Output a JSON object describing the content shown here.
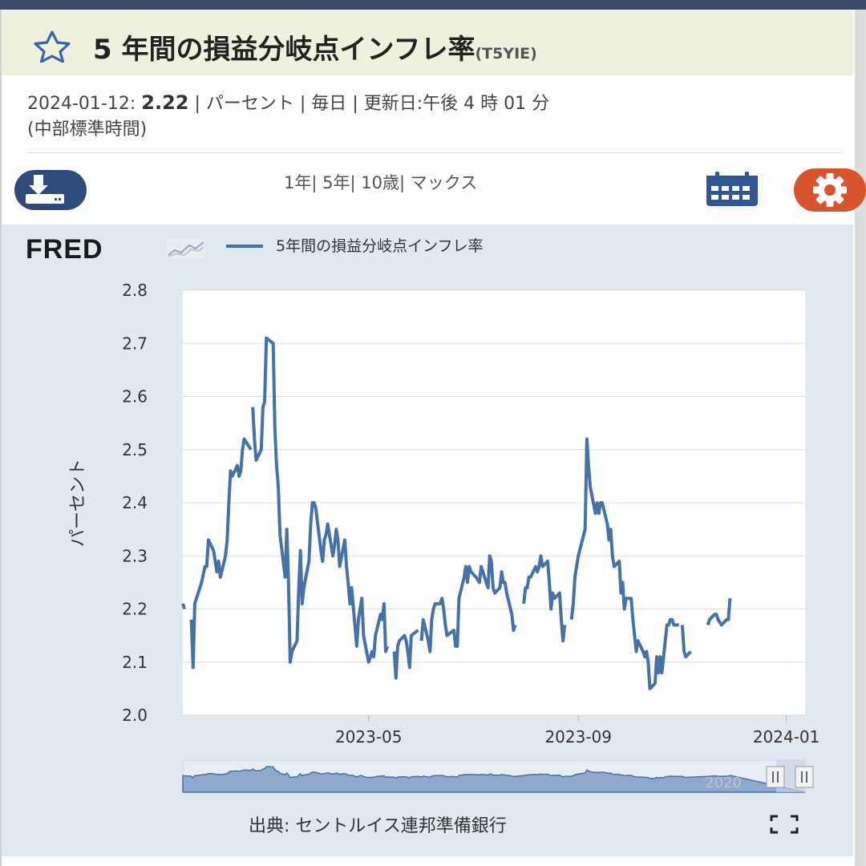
{
  "header": {
    "star_icon": "star-outline-icon",
    "title": "5 年間の損益分岐点インフレ率",
    "series_code": "(T5YIE)"
  },
  "meta": {
    "date": "2024-01-12:",
    "value": "2.22",
    "units": "| パーセント |",
    "frequency": "毎日",
    "updated": "| 更新日:午後 4 時 01 分",
    "timezone": "(中部標準時間)"
  },
  "toolbar": {
    "download_icon": "download-icon",
    "range_1y": "1年|",
    "range_5y": "5年|",
    "range_10y": "10歳|",
    "range_max": "マックス",
    "calendar_icon": "calendar-icon",
    "settings_icon": "gear-icon"
  },
  "branding": {
    "logo": "FRED"
  },
  "chart_data": {
    "type": "line",
    "ylabel": "パーセント",
    "ylim": [
      2.0,
      2.8
    ],
    "yticks": [
      "2.0",
      "2.1",
      "2.2",
      "2.3",
      "2.4",
      "2.5",
      "2.6",
      "2.7",
      "2.8"
    ],
    "xticks": [
      {
        "label": "2023-05",
        "x": "2023-05-01"
      },
      {
        "label": "2023-09",
        "x": "2023-09-01"
      },
      {
        "label": "2024-01",
        "x": "2024-01-01"
      }
    ],
    "xlim": [
      "2023-01-12",
      "2024-01-12"
    ],
    "grid": true,
    "legend": "top-left",
    "series": [
      {
        "name": "5年間の損益分岐点インフレ率",
        "color": "#4572a7",
        "points": [
          [
            "2023-01-12",
            2.21
          ],
          [
            "2023-01-13",
            2.2
          ],
          null,
          [
            "2023-01-17",
            2.18
          ],
          [
            "2023-01-18",
            2.09
          ],
          [
            "2023-01-19",
            2.21
          ],
          [
            "2023-01-23",
            2.25
          ],
          [
            "2023-01-25",
            2.28
          ],
          [
            "2023-01-26",
            2.28
          ],
          [
            "2023-01-27",
            2.33
          ],
          [
            "2023-01-30",
            2.31
          ],
          [
            "2023-01-31",
            2.29
          ],
          [
            "2023-02-01",
            2.27
          ],
          [
            "2023-02-02",
            2.29
          ],
          [
            "2023-02-03",
            2.26
          ],
          [
            "2023-02-06",
            2.3
          ],
          [
            "2023-02-07",
            2.33
          ],
          [
            "2023-02-08",
            2.4
          ],
          [
            "2023-02-09",
            2.46
          ],
          [
            "2023-02-10",
            2.45
          ],
          [
            "2023-02-13",
            2.47
          ],
          [
            "2023-02-14",
            2.45
          ],
          [
            "2023-02-15",
            2.46
          ],
          [
            "2023-02-16",
            2.5
          ],
          [
            "2023-02-17",
            2.52
          ],
          [
            "2023-02-21",
            2.5
          ],
          null,
          [
            "2023-02-22",
            2.58
          ],
          [
            "2023-02-23",
            2.52
          ],
          [
            "2023-02-24",
            2.48
          ],
          [
            "2023-02-27",
            2.5
          ],
          [
            "2023-02-28",
            2.58
          ],
          [
            "2023-03-01",
            2.59
          ],
          [
            "2023-03-02",
            2.71
          ],
          [
            "2023-03-06",
            2.7
          ],
          [
            "2023-03-07",
            2.54
          ],
          [
            "2023-03-08",
            2.47
          ],
          [
            "2023-03-09",
            2.43
          ],
          [
            "2023-03-10",
            2.34
          ],
          [
            "2023-03-13",
            2.26
          ],
          [
            "2023-03-14",
            2.35
          ],
          [
            "2023-03-15",
            2.25
          ],
          [
            "2023-03-16",
            2.1
          ],
          [
            "2023-03-17",
            2.12
          ],
          [
            "2023-03-20",
            2.14
          ],
          [
            "2023-03-21",
            2.24
          ],
          [
            "2023-03-22",
            2.31
          ],
          [
            "2023-03-23",
            2.21
          ],
          [
            "2023-03-24",
            2.24
          ],
          [
            "2023-03-27",
            2.29
          ],
          [
            "2023-03-28",
            2.36
          ],
          [
            "2023-03-29",
            2.4
          ],
          [
            "2023-03-30",
            2.4
          ],
          [
            "2023-03-31",
            2.39
          ],
          [
            "2023-04-03",
            2.31
          ],
          [
            "2023-04-04",
            2.29
          ],
          [
            "2023-04-05",
            2.33
          ],
          [
            "2023-04-06",
            2.34
          ],
          [
            "2023-04-07",
            2.36
          ],
          [
            "2023-04-10",
            2.3
          ],
          [
            "2023-04-11",
            2.32
          ],
          [
            "2023-04-12",
            2.35
          ],
          [
            "2023-04-13",
            2.33
          ],
          [
            "2023-04-14",
            2.28
          ],
          [
            "2023-04-17",
            2.33
          ],
          [
            "2023-04-18",
            2.28
          ],
          [
            "2023-04-19",
            2.25
          ],
          [
            "2023-04-20",
            2.21
          ],
          [
            "2023-04-21",
            2.24
          ],
          [
            "2023-04-24",
            2.13
          ],
          [
            "2023-04-25",
            2.18
          ],
          [
            "2023-04-26",
            2.2
          ],
          [
            "2023-04-27",
            2.22
          ],
          [
            "2023-04-28",
            2.15
          ],
          [
            "2023-05-01",
            2.1
          ],
          [
            "2023-05-02",
            2.11
          ],
          [
            "2023-05-03",
            2.12
          ],
          [
            "2023-05-04",
            2.11
          ],
          [
            "2023-05-05",
            2.15
          ],
          [
            "2023-05-08",
            2.19
          ],
          [
            "2023-05-09",
            2.18
          ],
          [
            "2023-05-10",
            2.21
          ],
          [
            "2023-05-11",
            2.12
          ],
          [
            "2023-05-12",
            2.13
          ],
          null,
          [
            "2023-05-16",
            2.12
          ],
          [
            "2023-05-17",
            2.07
          ],
          [
            "2023-05-18",
            2.13
          ],
          [
            "2023-05-19",
            2.14
          ],
          [
            "2023-05-22",
            2.15
          ],
          [
            "2023-05-23",
            2.14
          ],
          [
            "2023-05-24",
            2.12
          ],
          [
            "2023-05-25",
            2.09
          ],
          [
            "2023-05-26",
            2.15
          ],
          [
            "2023-05-30",
            2.16
          ],
          null,
          [
            "2023-06-01",
            2.14
          ],
          [
            "2023-06-02",
            2.18
          ],
          [
            "2023-06-05",
            2.14
          ],
          [
            "2023-06-06",
            2.12
          ],
          [
            "2023-06-07",
            2.18
          ],
          [
            "2023-06-08",
            2.2
          ],
          [
            "2023-06-09",
            2.21
          ],
          [
            "2023-06-12",
            2.21
          ],
          [
            "2023-06-13",
            2.22
          ],
          [
            "2023-06-14",
            2.2
          ],
          [
            "2023-06-15",
            2.17
          ],
          [
            "2023-06-16",
            2.15
          ],
          [
            "2023-06-20",
            2.16
          ],
          [
            "2023-06-21",
            2.13
          ],
          [
            "2023-06-22",
            2.13
          ],
          [
            "2023-06-23",
            2.22
          ],
          [
            "2023-06-26",
            2.26
          ],
          [
            "2023-06-27",
            2.28
          ],
          [
            "2023-06-28",
            2.25
          ],
          [
            "2023-06-29",
            2.28
          ],
          [
            "2023-06-30",
            2.27
          ],
          [
            "2023-07-03",
            2.26
          ],
          [
            "2023-07-05",
            2.25
          ],
          [
            "2023-07-06",
            2.28
          ],
          [
            "2023-07-07",
            2.27
          ],
          [
            "2023-07-10",
            2.24
          ],
          [
            "2023-07-11",
            2.3
          ],
          [
            "2023-07-12",
            2.29
          ],
          [
            "2023-07-13",
            2.24
          ],
          [
            "2023-07-14",
            2.23
          ],
          [
            "2023-07-17",
            2.24
          ],
          [
            "2023-07-18",
            2.27
          ],
          [
            "2023-07-19",
            2.25
          ],
          [
            "2023-07-20",
            2.25
          ],
          [
            "2023-07-21",
            2.23
          ],
          [
            "2023-07-24",
            2.19
          ],
          [
            "2023-07-25",
            2.16
          ],
          [
            "2023-07-26",
            2.17
          ],
          null,
          [
            "2023-07-31",
            2.21
          ],
          [
            "2023-08-01",
            2.24
          ],
          [
            "2023-08-02",
            2.24
          ],
          [
            "2023-08-03",
            2.26
          ],
          [
            "2023-08-04",
            2.26
          ],
          [
            "2023-08-07",
            2.28
          ],
          [
            "2023-08-08",
            2.27
          ],
          [
            "2023-08-09",
            2.28
          ],
          [
            "2023-08-10",
            2.3
          ],
          [
            "2023-08-11",
            2.28
          ],
          [
            "2023-08-14",
            2.29
          ],
          [
            "2023-08-15",
            2.25
          ],
          [
            "2023-08-16",
            2.2
          ],
          [
            "2023-08-17",
            2.23
          ],
          [
            "2023-08-18",
            2.22
          ],
          [
            "2023-08-21",
            2.23
          ],
          [
            "2023-08-22",
            2.18
          ],
          [
            "2023-08-23",
            2.14
          ],
          [
            "2023-08-24",
            2.17
          ],
          null,
          [
            "2023-08-28",
            2.18
          ],
          [
            "2023-08-29",
            2.21
          ],
          [
            "2023-08-30",
            2.26
          ],
          [
            "2023-08-31",
            2.28
          ],
          [
            "2023-09-01",
            2.3
          ],
          [
            "2023-09-05",
            2.35
          ],
          [
            "2023-09-06",
            2.52
          ],
          [
            "2023-09-07",
            2.47
          ],
          [
            "2023-09-08",
            2.43
          ],
          [
            "2023-09-11",
            2.38
          ],
          [
            "2023-09-12",
            2.4
          ],
          [
            "2023-09-13",
            2.38
          ],
          [
            "2023-09-14",
            2.4
          ],
          [
            "2023-09-15",
            2.4
          ],
          [
            "2023-09-18",
            2.36
          ],
          [
            "2023-09-19",
            2.33
          ],
          [
            "2023-09-20",
            2.35
          ],
          [
            "2023-09-21",
            2.3
          ],
          [
            "2023-09-22",
            2.28
          ],
          [
            "2023-09-25",
            2.29
          ],
          [
            "2023-09-26",
            2.23
          ],
          [
            "2023-09-27",
            2.25
          ],
          [
            "2023-09-28",
            2.2
          ],
          [
            "2023-09-29",
            2.22
          ],
          [
            "2023-10-02",
            2.22
          ],
          [
            "2023-10-03",
            2.18
          ],
          [
            "2023-10-04",
            2.15
          ],
          [
            "2023-10-05",
            2.12
          ],
          [
            "2023-10-06",
            2.14
          ],
          [
            "2023-10-09",
            2.12
          ],
          [
            "2023-10-10",
            2.11
          ],
          [
            "2023-10-11",
            2.12
          ],
          [
            "2023-10-12",
            2.1
          ],
          [
            "2023-10-13",
            2.05
          ],
          [
            "2023-10-16",
            2.06
          ],
          [
            "2023-10-17",
            2.11
          ],
          [
            "2023-10-18",
            2.08
          ],
          [
            "2023-10-19",
            2.11
          ],
          [
            "2023-10-20",
            2.08
          ],
          [
            "2023-10-23",
            2.17
          ],
          [
            "2023-10-24",
            2.17
          ],
          [
            "2023-10-25",
            2.18
          ],
          [
            "2023-10-26",
            2.18
          ],
          [
            "2023-10-27",
            2.17
          ],
          [
            "2023-10-30",
            2.17
          ],
          null,
          [
            "2023-11-01",
            2.17
          ],
          [
            "2023-11-02",
            2.12
          ],
          [
            "2023-11-03",
            2.11
          ],
          [
            "2023-11-06",
            2.12
          ],
          null,
          [
            "2023-11-16",
            2.17
          ],
          [
            "2023-11-17",
            2.18
          ],
          [
            "2023-11-20",
            2.19
          ],
          [
            "2023-11-21",
            2.19
          ],
          [
            "2023-11-22",
            2.18
          ],
          [
            "2023-11-24",
            2.17
          ],
          [
            "2023-11-27",
            2.18
          ],
          [
            "2023-11-28",
            2.18
          ],
          [
            "2023-11-29",
            2.22
          ]
        ]
      }
    ]
  },
  "navigator": {
    "label": "2020"
  },
  "footer": {
    "source": "出典: セントルイス連邦準備銀行",
    "fullscreen_icon": "fullscreen-icon"
  }
}
